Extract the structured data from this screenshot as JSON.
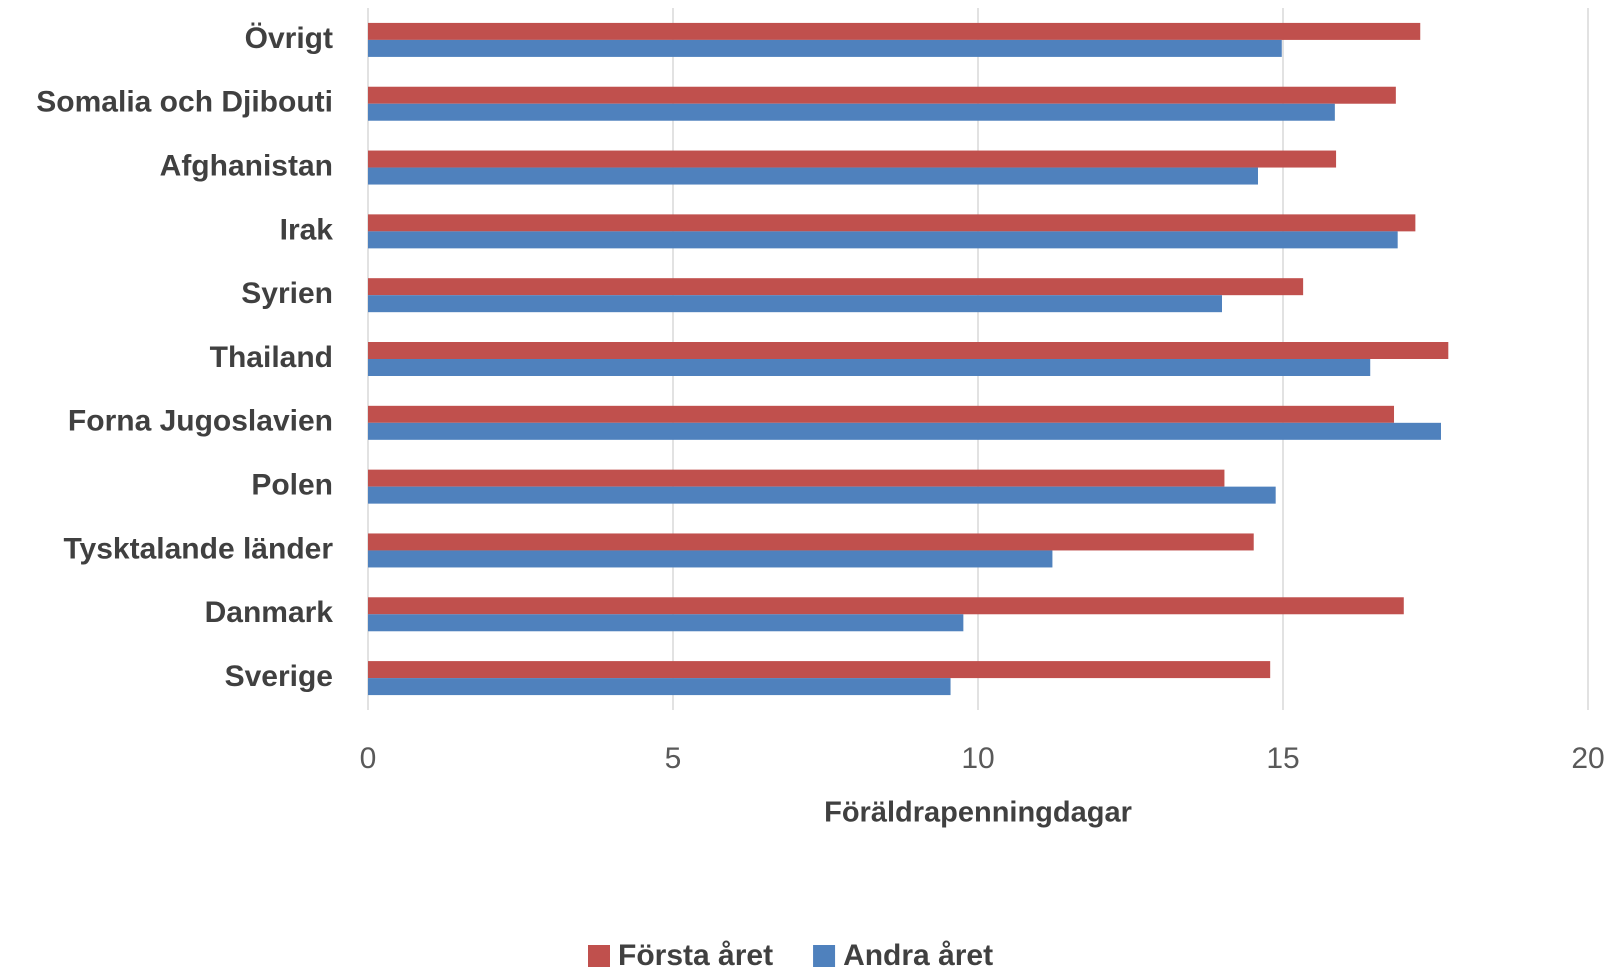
{
  "chart_data": {
    "type": "bar",
    "orientation": "horizontal",
    "x_label": "Föräldrapenningdagar",
    "categories": [
      "Övrigt",
      "Somalia och Djibouti",
      "Afghanistan",
      "Irak",
      "Syrien",
      "Thailand",
      "Forna Jugoslavien",
      "Polen",
      "Tysktalande länder",
      "Danmark",
      "Sverige"
    ],
    "series": [
      {
        "name": "Första året",
        "color": "#c0504d",
        "values": [
          17.25,
          16.85,
          15.87,
          17.17,
          15.33,
          17.71,
          16.82,
          14.04,
          14.52,
          16.98,
          14.79
        ]
      },
      {
        "name": "Andra året",
        "color": "#4f81bd",
        "values": [
          14.98,
          15.85,
          14.59,
          16.88,
          14.0,
          16.43,
          17.59,
          14.88,
          11.22,
          9.76,
          9.55
        ]
      }
    ],
    "xlim": [
      0,
      20
    ],
    "xticks": [
      0,
      5,
      10,
      15,
      20
    ],
    "grid": true,
    "legend": "bottom"
  }
}
